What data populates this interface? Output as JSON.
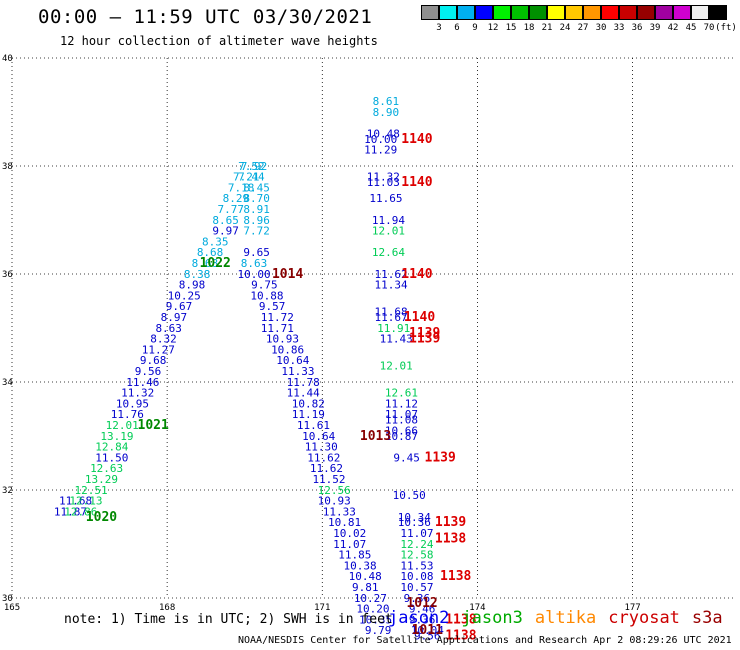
{
  "title": "00:00 — 11:59 UTC 03/30/2021",
  "subtitle": "12 hour collection of altimeter wave heights",
  "credit": "NOAA/NESDIS Center for Satellite Applications and Research   Apr  2 08:29:26 UTC 2021",
  "note": "note: 1) Time is in UTC; 2) SWH is in feet",
  "satellites": [
    {
      "name": "jason2",
      "color": "#0000ee"
    },
    {
      "name": "jason3",
      "color": "#00aa00"
    },
    {
      "name": "altika",
      "color": "#ff8800"
    },
    {
      "name": "cryosat",
      "color": "#cc0000"
    },
    {
      "name": "s3a",
      "color": "#990000"
    }
  ],
  "colorbar": {
    "colors": [
      "#909090",
      "#00f0f0",
      "#00b0f0",
      "#0000ff",
      "#00f000",
      "#00c000",
      "#009000",
      "#ffff00",
      "#ffc800",
      "#ff9600",
      "#ff0000",
      "#c80000",
      "#960000",
      "#a000a0",
      "#d000d0",
      "#f0f0f0",
      "#000000"
    ],
    "labels": [
      "",
      "3",
      "6",
      "9",
      "12",
      "15",
      "18",
      "21",
      "24",
      "27",
      "30",
      "33",
      "36",
      "39",
      "42",
      "45",
      "70"
    ],
    "unit": "(ft)"
  },
  "chart_data": {
    "type": "scatter",
    "xlim": [
      165,
      179
    ],
    "ylim": [
      30,
      40
    ],
    "x_ticks": [
      "165",
      "168",
      "171",
      "174",
      "177"
    ],
    "y_ticks": [
      "30",
      "32",
      "34",
      "36",
      "38",
      "40"
    ],
    "grid": true,
    "groups": [
      {
        "name": "track-a",
        "color": "#00aadd",
        "points": [
          {
            "x": 168.58,
            "y": 35.93,
            "v": "8.38"
          },
          {
            "x": 168.73,
            "y": 36.13,
            "v": "8.68"
          },
          {
            "x": 168.83,
            "y": 36.33,
            "v": "8.68"
          },
          {
            "x": 168.93,
            "y": 36.53,
            "v": "8.35"
          },
          {
            "x": 169.13,
            "y": 36.93,
            "v": "8.65"
          },
          {
            "x": 169.23,
            "y": 37.13,
            "v": "7.77"
          },
          {
            "x": 169.33,
            "y": 37.33,
            "v": "8.29"
          },
          {
            "x": 169.43,
            "y": 37.53,
            "v": "7.18"
          },
          {
            "x": 169.53,
            "y": 37.73,
            "v": "7.21"
          },
          {
            "x": 169.63,
            "y": 37.93,
            "v": "7.52"
          },
          {
            "x": 169.68,
            "y": 37.93,
            "v": "7.92"
          },
          {
            "x": 169.63,
            "y": 37.73,
            "v": "7.44"
          },
          {
            "x": 169.73,
            "y": 37.53,
            "v": "8.45"
          },
          {
            "x": 169.73,
            "y": 37.33,
            "v": "8.70"
          },
          {
            "x": 169.73,
            "y": 37.13,
            "v": "8.91"
          },
          {
            "x": 169.73,
            "y": 36.93,
            "v": "8.96"
          },
          {
            "x": 169.73,
            "y": 36.73,
            "v": "7.72"
          }
        ]
      },
      {
        "name": "track-b",
        "color": "#0000cc",
        "points": [
          {
            "x": 169.13,
            "y": 36.73,
            "v": "9.97"
          },
          {
            "x": 168.48,
            "y": 35.73,
            "v": "8.98"
          },
          {
            "x": 168.33,
            "y": 35.53,
            "v": "10.25"
          },
          {
            "x": 168.23,
            "y": 35.33,
            "v": "9.67"
          },
          {
            "x": 168.13,
            "y": 35.13,
            "v": "8.97"
          },
          {
            "x": 168.03,
            "y": 34.93,
            "v": "8.63"
          },
          {
            "x": 167.93,
            "y": 34.73,
            "v": "8.32"
          },
          {
            "x": 167.83,
            "y": 34.53,
            "v": "11.27"
          },
          {
            "x": 167.73,
            "y": 34.33,
            "v": "9.68"
          },
          {
            "x": 167.63,
            "y": 34.13,
            "v": "9.56"
          },
          {
            "x": 167.53,
            "y": 33.93,
            "v": "11.46"
          },
          {
            "x": 167.43,
            "y": 33.73,
            "v": "11.32"
          },
          {
            "x": 167.33,
            "y": 33.53,
            "v": "10.95"
          },
          {
            "x": 167.23,
            "y": 33.33,
            "v": "11.76"
          },
          {
            "x": 166.93,
            "y": 32.53,
            "v": "11.50"
          },
          {
            "x": 166.23,
            "y": 31.73,
            "v": "11.68"
          },
          {
            "x": 166.13,
            "y": 31.53,
            "v": "11.87"
          },
          {
            "x": 169.73,
            "y": 36.33,
            "v": "9.65"
          },
          {
            "x": 169.68,
            "y": 35.93,
            "v": "10.00"
          },
          {
            "x": 169.88,
            "y": 35.73,
            "v": "9.75"
          },
          {
            "x": 169.93,
            "y": 35.53,
            "v": "10.88"
          },
          {
            "x": 170.03,
            "y": 35.33,
            "v": "9.57"
          },
          {
            "x": 170.13,
            "y": 35.13,
            "v": "11.72"
          },
          {
            "x": 170.13,
            "y": 34.93,
            "v": "11.71"
          },
          {
            "x": 170.23,
            "y": 34.73,
            "v": "10.93"
          },
          {
            "x": 170.33,
            "y": 34.53,
            "v": "10.86"
          },
          {
            "x": 170.43,
            "y": 34.33,
            "v": "10.64"
          },
          {
            "x": 170.53,
            "y": 34.13,
            "v": "11.33"
          },
          {
            "x": 170.63,
            "y": 33.93,
            "v": "11.78"
          },
          {
            "x": 170.63,
            "y": 33.73,
            "v": "11.44"
          },
          {
            "x": 170.73,
            "y": 33.53,
            "v": "10.82"
          },
          {
            "x": 170.73,
            "y": 33.33,
            "v": "11.19"
          },
          {
            "x": 170.83,
            "y": 33.13,
            "v": "11.61"
          },
          {
            "x": 170.93,
            "y": 32.93,
            "v": "10.64"
          },
          {
            "x": 170.98,
            "y": 32.73,
            "v": "11.30"
          },
          {
            "x": 171.03,
            "y": 32.53,
            "v": "11.62"
          },
          {
            "x": 171.08,
            "y": 32.33,
            "v": "11.62"
          },
          {
            "x": 171.13,
            "y": 32.13,
            "v": "11.52"
          },
          {
            "x": 171.23,
            "y": 31.73,
            "v": "10.93"
          },
          {
            "x": 171.33,
            "y": 31.53,
            "v": "11.33"
          },
          {
            "x": 171.43,
            "y": 31.33,
            "v": "10.81"
          },
          {
            "x": 171.53,
            "y": 31.13,
            "v": "10.02"
          },
          {
            "x": 171.53,
            "y": 30.93,
            "v": "11.07"
          },
          {
            "x": 171.63,
            "y": 30.73,
            "v": "11.85"
          },
          {
            "x": 171.73,
            "y": 30.53,
            "v": "10.38"
          },
          {
            "x": 171.83,
            "y": 30.33,
            "v": "10.48"
          },
          {
            "x": 171.83,
            "y": 30.13,
            "v": "9.81"
          },
          {
            "x": 171.93,
            "y": 29.93,
            "v": "10.27"
          },
          {
            "x": 171.98,
            "y": 29.73,
            "v": "10.20"
          },
          {
            "x": 172.03,
            "y": 29.53,
            "v": "10.35"
          },
          {
            "x": 172.08,
            "y": 29.33,
            "v": "9.79"
          },
          {
            "x": 172.18,
            "y": 38.53,
            "v": "10.48"
          },
          {
            "x": 172.13,
            "y": 38.43,
            "v": "10.00"
          },
          {
            "x": 172.13,
            "y": 38.23,
            "v": "11.29"
          },
          {
            "x": 172.18,
            "y": 37.73,
            "v": "11.32"
          },
          {
            "x": 172.18,
            "y": 37.63,
            "v": "11.03"
          },
          {
            "x": 172.23,
            "y": 37.33,
            "v": "11.65"
          },
          {
            "x": 172.28,
            "y": 36.93,
            "v": "11.94"
          },
          {
            "x": 172.33,
            "y": 35.93,
            "v": "11.62"
          },
          {
            "x": 172.33,
            "y": 35.73,
            "v": "11.34"
          },
          {
            "x": 172.33,
            "y": 35.23,
            "v": "11.68"
          },
          {
            "x": 172.33,
            "y": 35.13,
            "v": "11.67"
          },
          {
            "x": 172.43,
            "y": 34.73,
            "v": "11.43"
          },
          {
            "x": 172.53,
            "y": 33.53,
            "v": "11.12"
          },
          {
            "x": 172.53,
            "y": 33.33,
            "v": "11.07"
          },
          {
            "x": 172.53,
            "y": 33.23,
            "v": "11.08"
          },
          {
            "x": 172.53,
            "y": 33.03,
            "v": "10.66"
          },
          {
            "x": 172.53,
            "y": 32.93,
            "v": "10.87"
          },
          {
            "x": 172.63,
            "y": 32.53,
            "v": "9.45"
          },
          {
            "x": 172.68,
            "y": 31.83,
            "v": "10.50"
          },
          {
            "x": 172.78,
            "y": 31.43,
            "v": "10.34"
          },
          {
            "x": 172.78,
            "y": 31.33,
            "v": "10.36"
          },
          {
            "x": 172.83,
            "y": 31.13,
            "v": "11.07"
          },
          {
            "x": 172.83,
            "y": 30.53,
            "v": "11.53"
          },
          {
            "x": 172.83,
            "y": 30.33,
            "v": "10.08"
          },
          {
            "x": 172.83,
            "y": 30.13,
            "v": "10.57"
          },
          {
            "x": 172.83,
            "y": 29.93,
            "v": "9.36"
          },
          {
            "x": 172.93,
            "y": 29.73,
            "v": "9.46"
          },
          {
            "x": 172.93,
            "y": 29.53,
            "v": "9.36"
          },
          {
            "x": 173.03,
            "y": 29.33,
            "v": "10.04"
          },
          {
            "x": 173.03,
            "y": 29.23,
            "v": "9.56"
          }
        ]
      },
      {
        "name": "track-c",
        "color": "#00cc55",
        "points": [
          {
            "x": 167.13,
            "y": 33.13,
            "v": "12.01"
          },
          {
            "x": 167.03,
            "y": 32.93,
            "v": "13.19"
          },
          {
            "x": 166.93,
            "y": 32.73,
            "v": "12.84"
          },
          {
            "x": 166.83,
            "y": 32.33,
            "v": "12.63"
          },
          {
            "x": 166.73,
            "y": 32.13,
            "v": "13.29"
          },
          {
            "x": 166.53,
            "y": 31.93,
            "v": "12.51"
          },
          {
            "x": 166.43,
            "y": 31.73,
            "v": "12.13"
          },
          {
            "x": 166.33,
            "y": 31.53,
            "v": "12.86"
          },
          {
            "x": 171.23,
            "y": 31.93,
            "v": "12.56"
          },
          {
            "x": 172.28,
            "y": 36.73,
            "v": "12.01"
          },
          {
            "x": 172.28,
            "y": 36.33,
            "v": "12.64"
          },
          {
            "x": 172.38,
            "y": 34.93,
            "v": "11.91"
          },
          {
            "x": 172.43,
            "y": 34.23,
            "v": "12.01"
          },
          {
            "x": 172.53,
            "y": 33.73,
            "v": "12.61"
          },
          {
            "x": 172.83,
            "y": 30.93,
            "v": "12.24"
          },
          {
            "x": 172.83,
            "y": 30.73,
            "v": "12.58"
          }
        ]
      },
      {
        "name": "track-d",
        "color": "#00aadd",
        "points": [
          {
            "x": 172.23,
            "y": 39.13,
            "v": "8.61"
          },
          {
            "x": 172.23,
            "y": 38.93,
            "v": "8.90"
          },
          {
            "x": 169.68,
            "y": 36.13,
            "v": "8.63"
          }
        ]
      }
    ],
    "pressure_labels": [
      {
        "x": 168.93,
        "y": 36.13,
        "v": "1022",
        "color": "#008800"
      },
      {
        "x": 167.73,
        "y": 33.13,
        "v": "1021",
        "color": "#008800"
      },
      {
        "x": 166.73,
        "y": 31.43,
        "v": "1020",
        "color": "#008800"
      },
      {
        "x": 170.33,
        "y": 35.93,
        "v": "1014",
        "color": "#880000"
      },
      {
        "x": 172.03,
        "y": 32.93,
        "v": "1013",
        "color": "#880000"
      },
      {
        "x": 172.93,
        "y": 29.83,
        "v": "1012",
        "color": "#880000"
      },
      {
        "x": 173.03,
        "y": 29.33,
        "v": "1011",
        "color": "#880000"
      },
      {
        "x": 172.83,
        "y": 38.43,
        "v": "1140",
        "color": "#dd0000"
      },
      {
        "x": 172.83,
        "y": 37.63,
        "v": "1140",
        "color": "#dd0000"
      },
      {
        "x": 172.83,
        "y": 35.93,
        "v": "1140",
        "color": "#dd0000"
      },
      {
        "x": 172.88,
        "y": 35.13,
        "v": "1140",
        "color": "#dd0000"
      },
      {
        "x": 172.98,
        "y": 34.83,
        "v": "1139",
        "color": "#dd0000"
      },
      {
        "x": 172.98,
        "y": 34.73,
        "v": "1139",
        "color": "#dd0000"
      },
      {
        "x": 173.28,
        "y": 32.53,
        "v": "1139",
        "color": "#dd0000"
      },
      {
        "x": 173.48,
        "y": 31.33,
        "v": "1139",
        "color": "#dd0000"
      },
      {
        "x": 173.48,
        "y": 31.03,
        "v": "1138",
        "color": "#dd0000"
      },
      {
        "x": 173.58,
        "y": 30.33,
        "v": "1138",
        "color": "#dd0000"
      },
      {
        "x": 173.68,
        "y": 29.53,
        "v": "1138",
        "color": "#dd0000"
      },
      {
        "x": 173.68,
        "y": 29.23,
        "v": "1138",
        "color": "#dd0000"
      }
    ]
  }
}
